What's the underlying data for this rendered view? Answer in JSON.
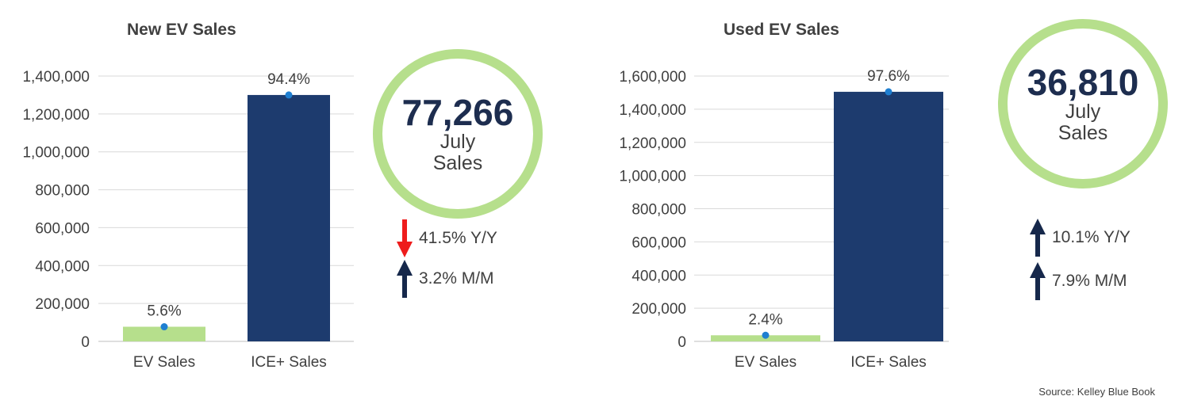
{
  "colors": {
    "ev": "#b6df8c",
    "ice": "#1d3b6e",
    "dot": "#1f7fd1",
    "down": "#ee1c1c",
    "up": "#16284b",
    "grid": "#d9d9d9"
  },
  "chart_data": [
    {
      "type": "bar",
      "title": "New EV Sales",
      "categories": [
        "EV Sales",
        "ICE+ Sales"
      ],
      "values": [
        77266,
        1300000
      ],
      "share_labels": [
        "5.6%",
        "94.4%"
      ],
      "shares": [
        5.6,
        94.4
      ],
      "ylim": [
        0,
        1400000
      ],
      "yticks": [
        0,
        200000,
        400000,
        600000,
        800000,
        1000000,
        1200000,
        1400000
      ],
      "ytick_labels": [
        "0",
        "200,000",
        "400,000",
        "600,000",
        "800,000",
        "1,000,000",
        "1,200,000",
        "1,400,000"
      ],
      "grid": true,
      "legend": "none"
    },
    {
      "type": "bar",
      "title": "Used EV Sales",
      "categories": [
        "EV Sales",
        "ICE+ Sales"
      ],
      "values": [
        36810,
        1505000
      ],
      "share_labels": [
        "2.4%",
        "97.6%"
      ],
      "shares": [
        2.4,
        97.6
      ],
      "ylim": [
        0,
        1600000
      ],
      "yticks": [
        0,
        200000,
        400000,
        600000,
        800000,
        1000000,
        1200000,
        1400000,
        1600000
      ],
      "ytick_labels": [
        "0",
        "200,000",
        "400,000",
        "600,000",
        "800,000",
        "1,000,000",
        "1,200,000",
        "1,400,000",
        "1,600,000"
      ],
      "grid": true,
      "legend": "none"
    }
  ],
  "kpi": {
    "new": {
      "value": "77,266",
      "line1": "July",
      "line2": "Sales",
      "changes": [
        {
          "direction": "down",
          "text": "41.5% Y/Y"
        },
        {
          "direction": "up",
          "text": "3.2% M/M"
        }
      ]
    },
    "used": {
      "value": "36,810",
      "line1": "July",
      "line2": "Sales",
      "changes": [
        {
          "direction": "up",
          "text": "10.1% Y/Y"
        },
        {
          "direction": "up",
          "text": "7.9% M/M"
        }
      ]
    }
  },
  "source": "Source: Kelley Blue Book"
}
